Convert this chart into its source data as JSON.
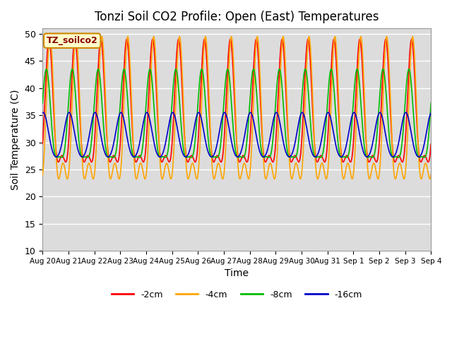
{
  "title": "Tonzi Soil CO2 Profile: Open (East) Temperatures",
  "xlabel": "Time",
  "ylabel": "Soil Temperature (C)",
  "ylim": [
    10,
    51
  ],
  "yticks": [
    10,
    15,
    20,
    25,
    30,
    35,
    40,
    45,
    50
  ],
  "colors": {
    "-2cm": "#FF0000",
    "-4cm": "#FFA500",
    "-8cm": "#00BB00",
    "-16cm": "#0000CC"
  },
  "legend_label": "TZ_soilco2",
  "legend_bg": "#FFFFCC",
  "legend_border": "#CC8800",
  "background_color": "#DCDCDC",
  "series": {
    "-2cm": {
      "mean": 34.0,
      "amp": 15.0,
      "phase": 0.0,
      "skew": 0.4
    },
    "-4cm": {
      "mean": 32.0,
      "amp": 17.5,
      "phase": -0.25,
      "skew": 0.5
    },
    "-8cm": {
      "mean": 33.0,
      "amp": 10.5,
      "phase": 0.65,
      "skew": 0.3
    },
    "-16cm": {
      "mean": 31.0,
      "amp": 4.5,
      "phase": 1.4,
      "skew": 0.1
    }
  },
  "n_points": 4000
}
